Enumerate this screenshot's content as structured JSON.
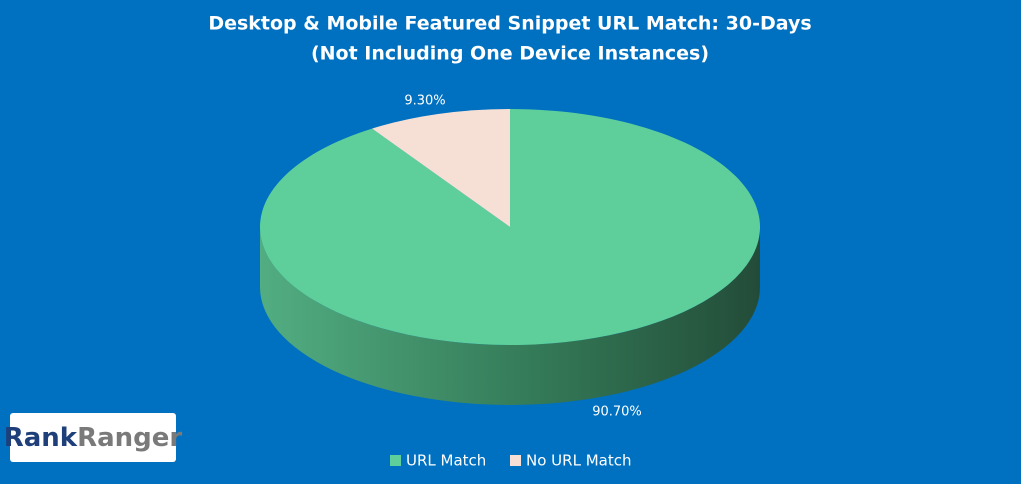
{
  "chart_data": {
    "type": "pie3d",
    "title": [
      "Desktop & Mobile Featured Snippet URL Match: 30-Days",
      "(Not Including One Device Instances)"
    ],
    "categories": [
      "URL Match",
      "No URL Match"
    ],
    "values": [
      90.7,
      9.3
    ],
    "value_labels": [
      "90.70%",
      "9.30%"
    ],
    "colors": [
      "#5ecf9b",
      "#f6e0d6"
    ],
    "legend": "bottom"
  },
  "logo": [
    "Rank",
    "Ranger"
  ]
}
